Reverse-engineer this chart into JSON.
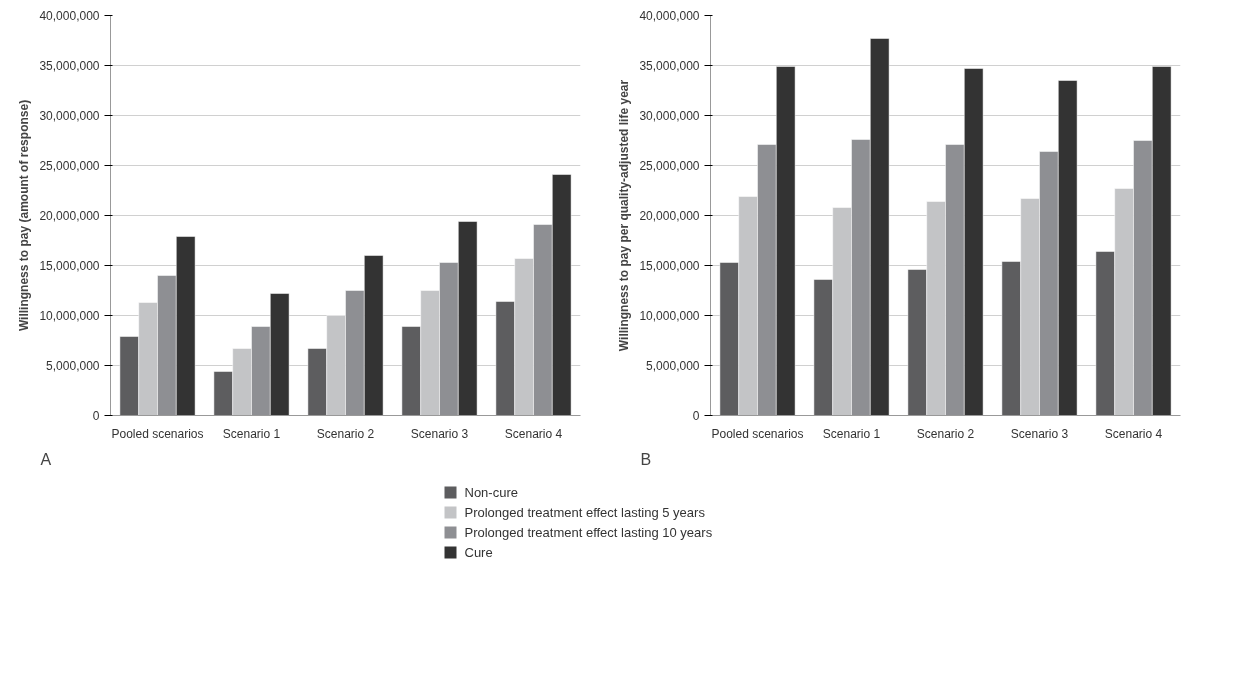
{
  "chart_data": [
    {
      "type": "bar",
      "ylabel": "Willingness to pay (amount of response)",
      "annotations": [
        "A"
      ],
      "categories": [
        "Pooled scenarios",
        "Scenario 1",
        "Scenario 2",
        "Scenario 3",
        "Scenario 4"
      ],
      "series": [
        {
          "name": "Non-cure",
          "color": "#5d5d5f",
          "values": [
            7900000,
            4400000,
            6700000,
            8900000,
            11400000
          ]
        },
        {
          "name": "Prolonged treatment effect lasting 5 years",
          "color": "#c3c4c6",
          "values": [
            11300000,
            6700000,
            10000000,
            12500000,
            15700000
          ]
        },
        {
          "name": "Prolonged treatment effect lasting 10 years",
          "color": "#8e8f93",
          "values": [
            14000000,
            8900000,
            12500000,
            15300000,
            19100000
          ]
        },
        {
          "name": "Cure",
          "color": "#333333",
          "values": [
            17900000,
            12200000,
            16000000,
            19400000,
            24100000
          ]
        }
      ],
      "ylim": [
        0,
        40000000
      ],
      "yticks": [
        {
          "value": 0,
          "label": "0"
        },
        {
          "value": 5000000,
          "label": "5,000,000"
        },
        {
          "value": 10000000,
          "label": "10,000,000"
        },
        {
          "value": 15000000,
          "label": "15,000,000"
        },
        {
          "value": 20000000,
          "label": "20,000,000"
        },
        {
          "value": 25000000,
          "label": "25,000,000"
        },
        {
          "value": 30000000,
          "label": "30,000,000"
        },
        {
          "value": 35000000,
          "label": "35,000,000"
        },
        {
          "value": 40000000,
          "label": "40,000,000"
        }
      ],
      "grid": "y",
      "legend": "bottom"
    },
    {
      "type": "bar",
      "ylabel": "Willingness to pay per quality-adjusted life year",
      "annotations": [
        "B"
      ],
      "categories": [
        "Pooled scenarios",
        "Scenario 1",
        "Scenario 2",
        "Scenario 3",
        "Scenario 4"
      ],
      "series": [
        {
          "color": "#5d5d5f",
          "values": [
            15300000,
            13600000,
            14600000,
            15400000,
            16400000
          ]
        },
        {
          "color": "#c3c4c6",
          "values": [
            21900000,
            20800000,
            21400000,
            21700000,
            22700000
          ]
        },
        {
          "color": "#8e8f93",
          "values": [
            27100000,
            27600000,
            27100000,
            26400000,
            27500000
          ]
        },
        {
          "color": "#333333",
          "values": [
            34900000,
            37700000,
            34700000,
            33500000,
            34900000
          ]
        }
      ],
      "ylim": [
        0,
        40000000
      ],
      "yticks": [
        {
          "value": 0,
          "label": "0"
        },
        {
          "value": 5000000,
          "label": "5,000,000"
        },
        {
          "value": 10000000,
          "label": "10,000,000"
        },
        {
          "value": 15000000,
          "label": "15,000,000"
        },
        {
          "value": 20000000,
          "label": "20,000,000"
        },
        {
          "value": 25000000,
          "label": "25,000,000"
        },
        {
          "value": 30000000,
          "label": "30,000,000"
        },
        {
          "value": 35000000,
          "label": "35,000,000"
        },
        {
          "value": 40000000,
          "label": "40,000,000"
        }
      ],
      "grid": "y"
    }
  ]
}
